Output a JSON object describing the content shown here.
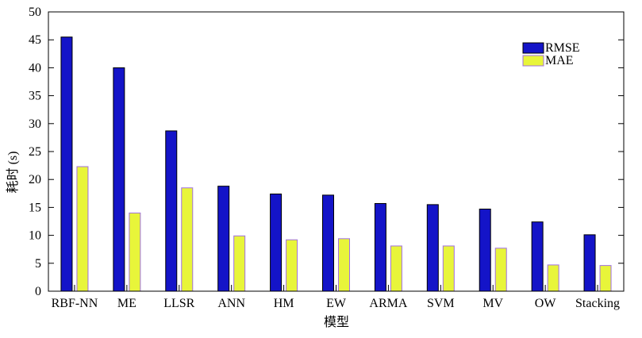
{
  "chart_data": {
    "type": "bar",
    "title": "",
    "xlabel": "模型",
    "ylabel": "耗时 (s)",
    "ylim": [
      0,
      50
    ],
    "yticks": [
      0,
      5,
      10,
      15,
      20,
      25,
      30,
      35,
      40,
      45,
      50
    ],
    "grid": false,
    "legend_position": "top-right",
    "categories": [
      "RBF-NN",
      "ME",
      "LLSR",
      "ANN",
      "HM",
      "EW",
      "ARMA",
      "SVM",
      "MV",
      "OW",
      "Stacking"
    ],
    "series": [
      {
        "name": "RMSE",
        "color": "#1414c8",
        "values": [
          45.5,
          40.0,
          28.7,
          18.8,
          17.4,
          17.2,
          15.7,
          15.5,
          14.7,
          12.4,
          10.1
        ]
      },
      {
        "name": "MAE",
        "color": "#e8f53a",
        "edge_color": "#a070e0",
        "values": [
          22.3,
          14.0,
          18.5,
          9.9,
          9.2,
          9.4,
          8.1,
          8.1,
          7.7,
          4.7,
          4.6
        ]
      }
    ]
  }
}
